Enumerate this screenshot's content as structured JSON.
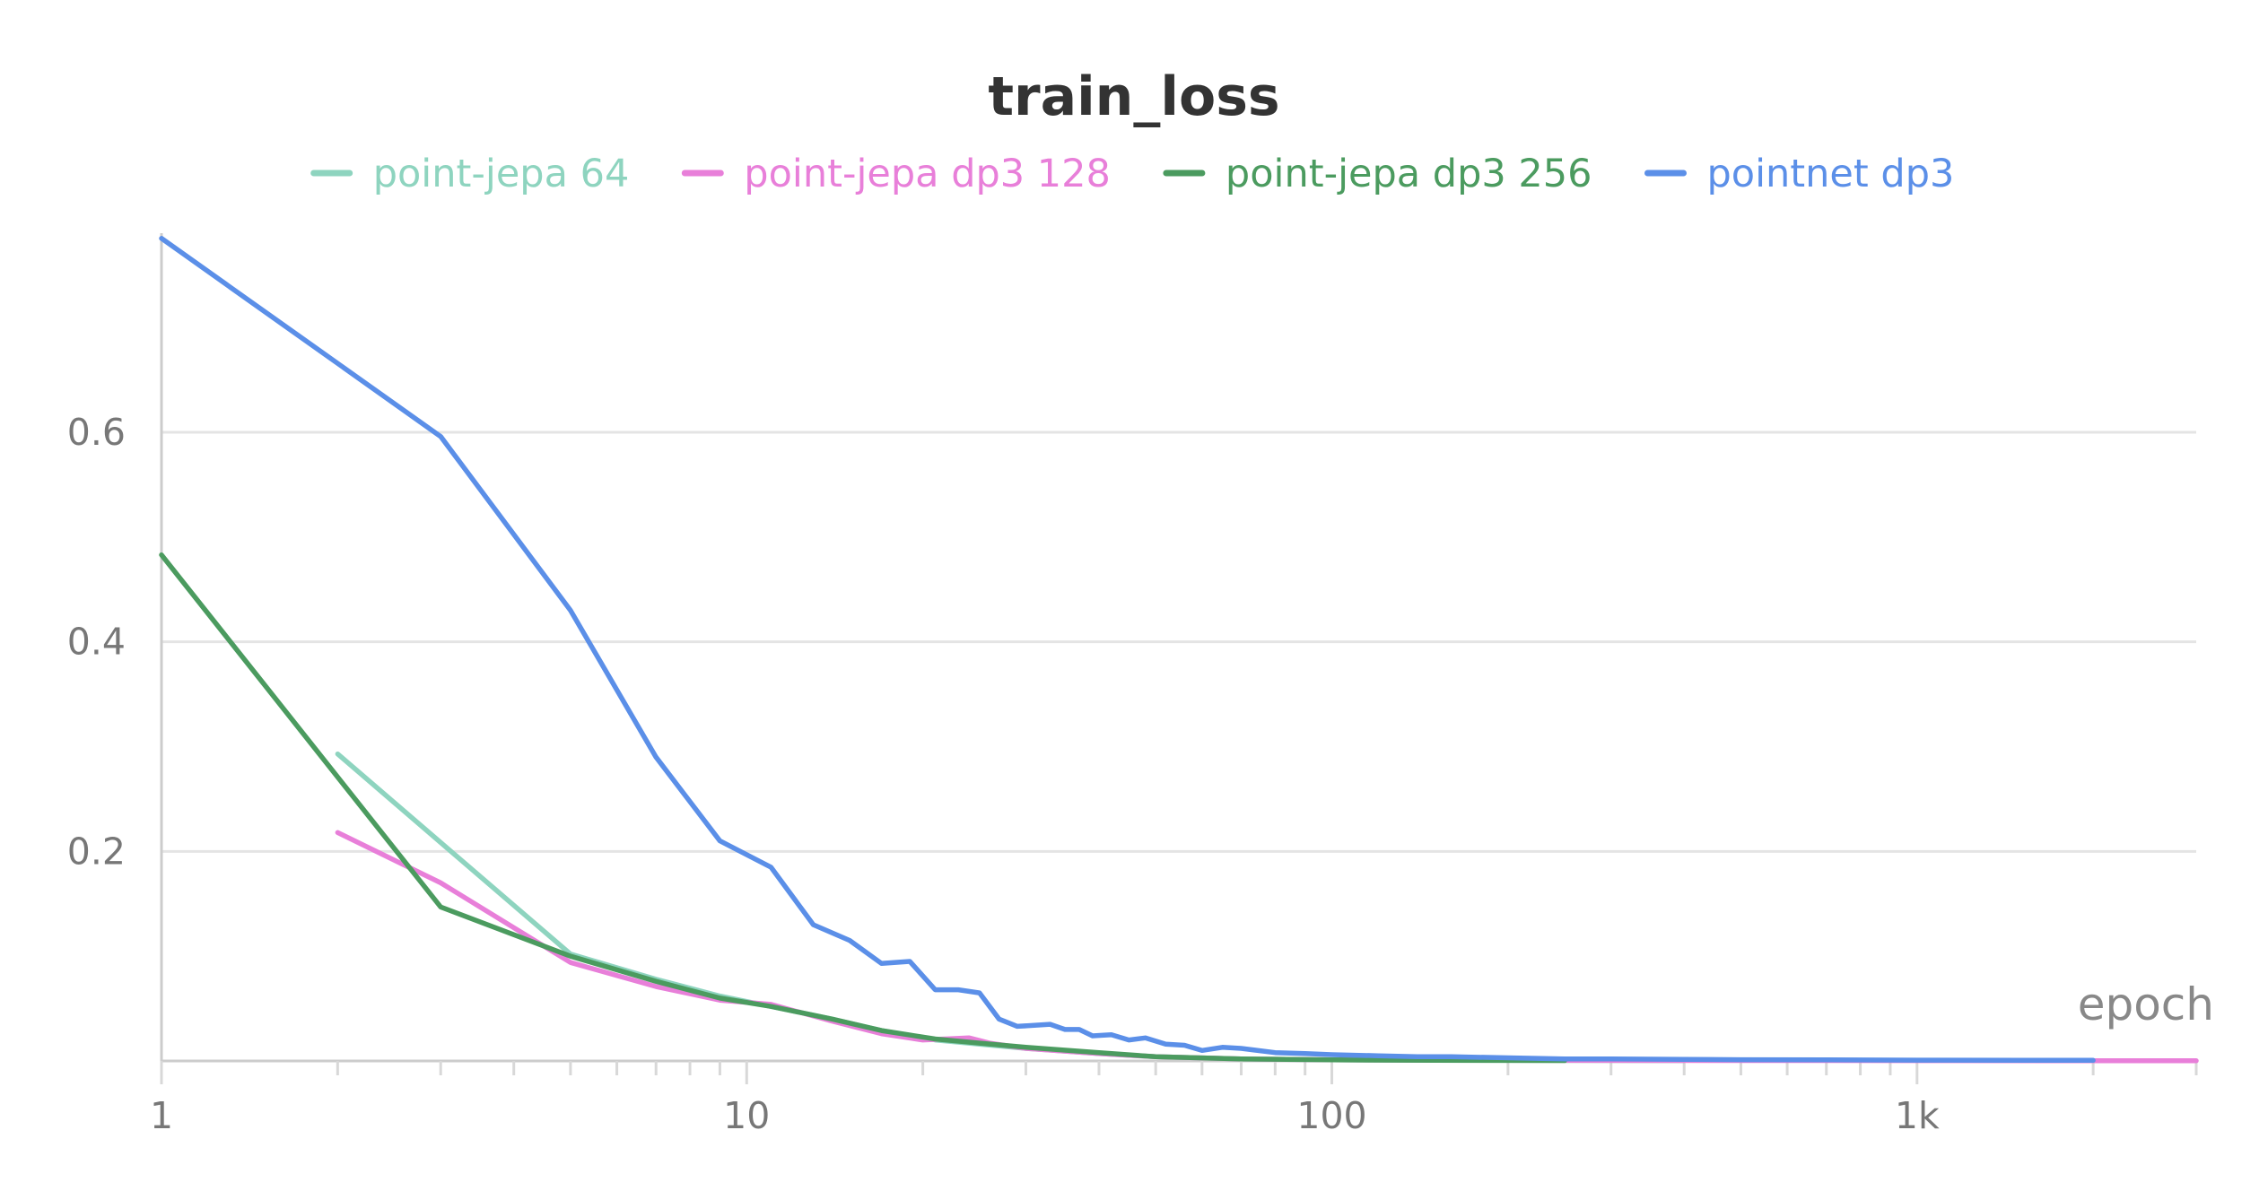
{
  "chart_data": {
    "type": "line",
    "title": "train_loss",
    "xlabel": "epoch",
    "ylabel": "",
    "xscale": "log",
    "xlim": [
      1,
      3000
    ],
    "ylim": [
      0,
      0.79
    ],
    "yticks": [
      {
        "value": 0.2,
        "label": "0.2"
      },
      {
        "value": 0.4,
        "label": "0.4"
      },
      {
        "value": 0.6,
        "label": "0.6"
      }
    ],
    "xticks": [
      {
        "value": 1,
        "label": "1"
      },
      {
        "value": 10,
        "label": "10"
      },
      {
        "value": 100,
        "label": "100"
      },
      {
        "value": 1000,
        "label": "1k"
      }
    ],
    "grid": true,
    "legend_position": "top",
    "series": [
      {
        "name": "point-jepa 64",
        "color": "#8ed4bf",
        "x": [
          2,
          5,
          7,
          9,
          11,
          14,
          17,
          21,
          25,
          30,
          40,
          50,
          70,
          100,
          200,
          400
        ],
        "y": [
          0.293,
          0.102,
          0.078,
          0.062,
          0.052,
          0.04,
          0.029,
          0.02,
          0.016,
          0.012,
          0.007,
          0.004,
          0.002,
          0.001,
          0.0005,
          0.0003
        ]
      },
      {
        "name": "point-jepa dp3 128",
        "color": "#e87fd9",
        "x": [
          2,
          3,
          5,
          7,
          9,
          11,
          14,
          17,
          20,
          24,
          26,
          30,
          40,
          50,
          70,
          100,
          200,
          500,
          1000,
          2000,
          3000
        ],
        "y": [
          0.218,
          0.17,
          0.094,
          0.071,
          0.058,
          0.054,
          0.038,
          0.026,
          0.02,
          0.022,
          0.017,
          0.012,
          0.007,
          0.004,
          0.002,
          0.001,
          0.0006,
          0.0004,
          0.0003,
          0.0002,
          0.0002
        ]
      },
      {
        "name": "point-jepa dp3 256",
        "color": "#4b9b5f",
        "x": [
          1,
          3,
          5,
          7,
          9,
          11,
          14,
          17,
          21,
          25,
          30,
          40,
          50,
          70,
          100,
          150,
          200,
          250
        ],
        "y": [
          0.483,
          0.147,
          0.1,
          0.076,
          0.06,
          0.052,
          0.04,
          0.029,
          0.021,
          0.017,
          0.013,
          0.008,
          0.004,
          0.002,
          0.001,
          0.0007,
          0.0005,
          0.0004
        ]
      },
      {
        "name": "pointnet dp3",
        "color": "#5b8fe8",
        "x": [
          1,
          3,
          5,
          7,
          9,
          11,
          13,
          15,
          17,
          19,
          21,
          23,
          25,
          27,
          29,
          31,
          33,
          35,
          37,
          39,
          42,
          45,
          48,
          52,
          56,
          60,
          65,
          70,
          80,
          90,
          100,
          120,
          140,
          160,
          200,
          250,
          300,
          400,
          500,
          700,
          1000,
          1500,
          2000
        ],
        "y": [
          0.785,
          0.596,
          0.43,
          0.29,
          0.21,
          0.185,
          0.13,
          0.115,
          0.093,
          0.095,
          0.068,
          0.068,
          0.065,
          0.04,
          0.033,
          0.034,
          0.035,
          0.03,
          0.03,
          0.024,
          0.025,
          0.02,
          0.022,
          0.016,
          0.015,
          0.01,
          0.013,
          0.012,
          0.008,
          0.007,
          0.006,
          0.005,
          0.004,
          0.004,
          0.003,
          0.002,
          0.002,
          0.0015,
          0.0012,
          0.001,
          0.0008,
          0.0007,
          0.0006
        ]
      }
    ]
  }
}
